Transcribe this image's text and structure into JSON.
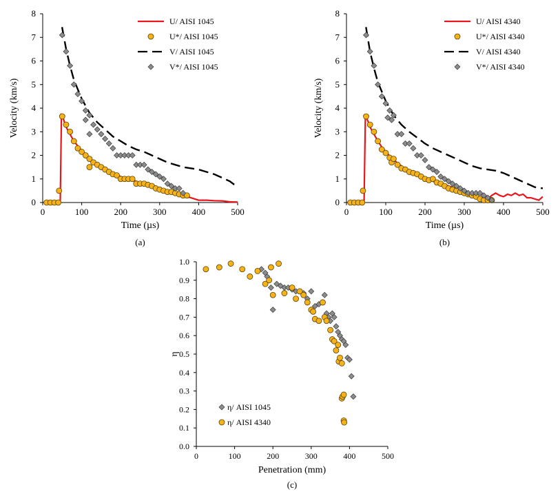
{
  "colors": {
    "u_line": "#e8161b",
    "v_line": "#000000",
    "u_marker": "#f5b21a",
    "v_marker": "#8c8c8c",
    "axis": "#000000"
  },
  "chart_data": [
    {
      "id": "a",
      "type": "line",
      "caption": "(a)",
      "xlabel": "Time (µs)",
      "ylabel": "Velocity (km/s)",
      "xlim": [
        0,
        500
      ],
      "ylim": [
        0,
        8
      ],
      "xticks": [
        "0",
        "100",
        "200",
        "300",
        "400",
        "500"
      ],
      "yticks": [
        "0",
        "1",
        "2",
        "3",
        "4",
        "5",
        "6",
        "7",
        "8"
      ],
      "grid": false,
      "legend_position": "top-right",
      "series": [
        {
          "name": "U/ AISI 1045",
          "kind": "line",
          "style": "solid",
          "color": "#e8161b",
          "x": [
            40,
            45,
            48,
            52,
            56,
            60,
            70,
            80,
            90,
            100,
            120,
            140,
            160,
            180,
            200,
            220,
            240,
            260,
            280,
            300,
            320,
            340,
            360,
            380,
            400,
            420,
            440,
            460,
            480,
            500
          ],
          "y": [
            0,
            0.1,
            3.7,
            3.6,
            3.4,
            3.2,
            2.9,
            2.6,
            2.4,
            2.2,
            1.85,
            1.6,
            1.4,
            1.25,
            1.1,
            1.0,
            0.9,
            0.8,
            0.7,
            0.6,
            0.5,
            0.4,
            0.3,
            0.2,
            0.1,
            0.1,
            0.08,
            0.07,
            0.03,
            0.02
          ]
        },
        {
          "name": "U*/ AISI 1045",
          "kind": "marker",
          "marker": "circle",
          "color": "#f5b21a",
          "x": [
            10,
            20,
            30,
            40,
            42,
            50,
            60,
            70,
            80,
            90,
            100,
            110,
            120,
            120,
            130,
            140,
            150,
            160,
            170,
            180,
            190,
            200,
            210,
            220,
            230,
            240,
            250,
            260,
            270,
            280,
            290,
            300,
            310,
            320,
            330,
            340,
            350,
            360,
            370
          ],
          "y": [
            0,
            0,
            0,
            0,
            0.5,
            3.65,
            3.3,
            3.0,
            2.6,
            2.3,
            2.15,
            2.0,
            1.85,
            1.5,
            1.7,
            1.6,
            1.5,
            1.4,
            1.3,
            1.2,
            1.15,
            1.0,
            1.0,
            1.0,
            1.0,
            0.8,
            0.8,
            0.8,
            0.75,
            0.7,
            0.6,
            0.55,
            0.5,
            0.45,
            0.45,
            0.4,
            0.35,
            0.3,
            0.3
          ]
        },
        {
          "name": "V/ AISI 1045",
          "kind": "line",
          "style": "dashed",
          "color": "#000000",
          "x": [
            48,
            50,
            60,
            70,
            80,
            90,
            100,
            120,
            140,
            160,
            180,
            200,
            220,
            240,
            260,
            280,
            300,
            320,
            340,
            360,
            380,
            400,
            420,
            440,
            460,
            480,
            500
          ],
          "y": [
            7.4,
            7.4,
            6.5,
            5.8,
            5.2,
            4.8,
            4.4,
            3.8,
            3.4,
            3.1,
            2.8,
            2.6,
            2.4,
            2.25,
            2.15,
            2.0,
            1.85,
            1.7,
            1.6,
            1.5,
            1.45,
            1.4,
            1.3,
            1.2,
            1.05,
            0.9,
            0.65
          ]
        },
        {
          "name": "V*/ AISI 1045",
          "kind": "marker",
          "marker": "diamond",
          "color": "#8c8c8c",
          "x": [
            50,
            60,
            70,
            80,
            90,
            100,
            110,
            110,
            120,
            120,
            130,
            140,
            150,
            160,
            170,
            180,
            190,
            200,
            210,
            220,
            230,
            240,
            250,
            260,
            270,
            280,
            290,
            300,
            310,
            320,
            330,
            340,
            350,
            360
          ],
          "y": [
            7.1,
            6.4,
            5.8,
            5.0,
            4.6,
            4.3,
            3.9,
            3.5,
            3.7,
            2.9,
            3.3,
            3.1,
            2.9,
            2.7,
            2.5,
            2.3,
            2.0,
            2.0,
            2.0,
            2.0,
            2.0,
            1.6,
            1.6,
            1.6,
            1.4,
            1.3,
            1.2,
            1.1,
            1.0,
            0.8,
            0.7,
            0.6,
            0.6,
            0.4
          ]
        }
      ]
    },
    {
      "id": "b",
      "type": "line",
      "caption": "(b)",
      "xlabel": "Time (µs)",
      "ylabel": "Velocity (km/s)",
      "xlim": [
        0,
        500
      ],
      "ylim": [
        0,
        8
      ],
      "xticks": [
        "0",
        "100",
        "200",
        "300",
        "400",
        "500"
      ],
      "yticks": [
        "0",
        "1",
        "2",
        "3",
        "4",
        "5",
        "6",
        "7",
        "8"
      ],
      "grid": false,
      "legend_position": "top-right",
      "series": [
        {
          "name": "U/ AISI 4340",
          "kind": "line",
          "style": "solid",
          "color": "#e8161b",
          "x": [
            40,
            45,
            48,
            52,
            56,
            60,
            70,
            80,
            90,
            100,
            120,
            140,
            160,
            180,
            200,
            220,
            240,
            260,
            280,
            300,
            320,
            340,
            350,
            360,
            370,
            380,
            390,
            400,
            410,
            420,
            430,
            440,
            450,
            460,
            470,
            480,
            490,
            500
          ],
          "y": [
            0,
            0.1,
            3.6,
            3.55,
            3.4,
            3.2,
            2.9,
            2.6,
            2.35,
            2.15,
            1.8,
            1.55,
            1.35,
            1.2,
            1.05,
            0.9,
            0.8,
            0.7,
            0.6,
            0.5,
            0.35,
            0.2,
            0.15,
            0.15,
            0.3,
            0.4,
            0.3,
            0.25,
            0.35,
            0.3,
            0.4,
            0.3,
            0.35,
            0.2,
            0.2,
            0.15,
            0.1,
            0.25
          ]
        },
        {
          "name": "U*/ AISI 4340",
          "kind": "marker",
          "marker": "circle",
          "color": "#f5b21a",
          "x": [
            10,
            20,
            30,
            40,
            42,
            50,
            60,
            70,
            80,
            90,
            100,
            110,
            115,
            120,
            130,
            140,
            150,
            160,
            170,
            180,
            190,
            200,
            210,
            220,
            230,
            240,
            250,
            260,
            270,
            280,
            290,
            300,
            310,
            320,
            330,
            340,
            350,
            360,
            370
          ],
          "y": [
            0,
            0,
            0,
            0,
            0.5,
            3.65,
            3.3,
            3.0,
            2.6,
            2.25,
            2.1,
            1.9,
            1.7,
            1.85,
            1.6,
            1.45,
            1.4,
            1.3,
            1.25,
            1.2,
            1.1,
            1.0,
            0.95,
            1.0,
            0.85,
            0.8,
            0.7,
            0.6,
            0.55,
            0.5,
            0.45,
            0.4,
            0.35,
            0.3,
            0.25,
            0.15,
            0.1,
            0.1,
            0.1
          ]
        },
        {
          "name": "V/ AISI 4340",
          "kind": "line",
          "style": "dashed",
          "color": "#000000",
          "x": [
            48,
            50,
            60,
            70,
            80,
            90,
            100,
            120,
            140,
            160,
            180,
            200,
            220,
            240,
            260,
            280,
            300,
            320,
            340,
            360,
            380,
            400,
            420,
            440,
            460,
            480,
            500
          ],
          "y": [
            7.4,
            7.4,
            6.4,
            5.7,
            5.1,
            4.7,
            4.3,
            3.7,
            3.3,
            3.0,
            2.75,
            2.5,
            2.3,
            2.15,
            2.0,
            1.85,
            1.7,
            1.55,
            1.45,
            1.4,
            1.35,
            1.25,
            1.1,
            0.95,
            0.8,
            0.65,
            0.6
          ]
        },
        {
          "name": "V*/ AISI 4340",
          "kind": "marker",
          "marker": "diamond",
          "color": "#8c8c8c",
          "x": [
            50,
            60,
            70,
            80,
            90,
            100,
            105,
            110,
            115,
            120,
            130,
            140,
            150,
            160,
            170,
            180,
            190,
            200,
            210,
            220,
            230,
            240,
            250,
            260,
            270,
            280,
            290,
            300,
            310,
            320,
            330,
            340,
            350,
            360,
            370
          ],
          "y": [
            7.1,
            6.4,
            5.8,
            5.0,
            4.5,
            4.2,
            3.6,
            3.9,
            3.5,
            3.7,
            2.9,
            2.9,
            2.5,
            2.5,
            2.3,
            2.0,
            2.0,
            1.8,
            1.5,
            1.4,
            1.3,
            1.1,
            1.0,
            0.9,
            0.8,
            0.7,
            0.6,
            0.5,
            0.4,
            0.4,
            0.4,
            0.4,
            0.3,
            0.2,
            0.1
          ]
        }
      ]
    },
    {
      "id": "c",
      "type": "scatter",
      "caption": "(c)",
      "xlabel": "Penetration (mm)",
      "ylabel": "η",
      "xlim": [
        0,
        500
      ],
      "ylim": [
        0,
        1.0
      ],
      "xticks": [
        "0",
        "100",
        "200",
        "300",
        "400",
        "500"
      ],
      "yticks": [
        "0.0",
        "0.1",
        "0.2",
        "0.3",
        "0.4",
        "0.5",
        "0.6",
        "0.7",
        "0.8",
        "0.9",
        "1.0"
      ],
      "grid": false,
      "legend_position": "bottom-left",
      "series": [
        {
          "name": "η/ AISI 1045",
          "kind": "marker",
          "marker": "diamond",
          "color": "#8c8c8c",
          "x": [
            170,
            180,
            185,
            190,
            195,
            200,
            210,
            220,
            230,
            240,
            250,
            260,
            270,
            280,
            290,
            300,
            310,
            320,
            330,
            335,
            340,
            345,
            350,
            355,
            360,
            365,
            370,
            375,
            380,
            385,
            390,
            395,
            400,
            405,
            410
          ],
          "y": [
            0.96,
            0.94,
            0.92,
            0.9,
            0.86,
            0.74,
            0.88,
            0.87,
            0.86,
            0.86,
            0.85,
            0.84,
            0.84,
            0.83,
            0.8,
            0.84,
            0.76,
            0.77,
            0.78,
            0.82,
            0.72,
            0.7,
            0.68,
            0.72,
            0.7,
            0.65,
            0.62,
            0.6,
            0.58,
            0.57,
            0.55,
            0.48,
            0.47,
            0.38,
            0.27
          ]
        },
        {
          "name": "η/ AISI 4340",
          "kind": "marker",
          "marker": "circle",
          "color": "#f5b21a",
          "x": [
            25,
            60,
            90,
            120,
            140,
            160,
            180,
            190,
            195,
            200,
            215,
            230,
            250,
            260,
            270,
            280,
            290,
            300,
            305,
            310,
            320,
            330,
            335,
            340,
            350,
            355,
            360,
            365,
            370,
            372,
            375,
            380,
            380,
            382,
            385,
            385,
            386
          ],
          "y": [
            0.96,
            0.97,
            0.99,
            0.96,
            0.92,
            0.95,
            0.88,
            0.9,
            0.97,
            0.82,
            0.99,
            0.83,
            0.86,
            0.8,
            0.84,
            0.82,
            0.78,
            0.74,
            0.73,
            0.69,
            0.68,
            0.78,
            0.7,
            0.68,
            0.63,
            0.58,
            0.57,
            0.52,
            0.55,
            0.46,
            0.48,
            0.45,
            0.26,
            0.27,
            0.28,
            0.14,
            0.13
          ]
        }
      ]
    }
  ]
}
